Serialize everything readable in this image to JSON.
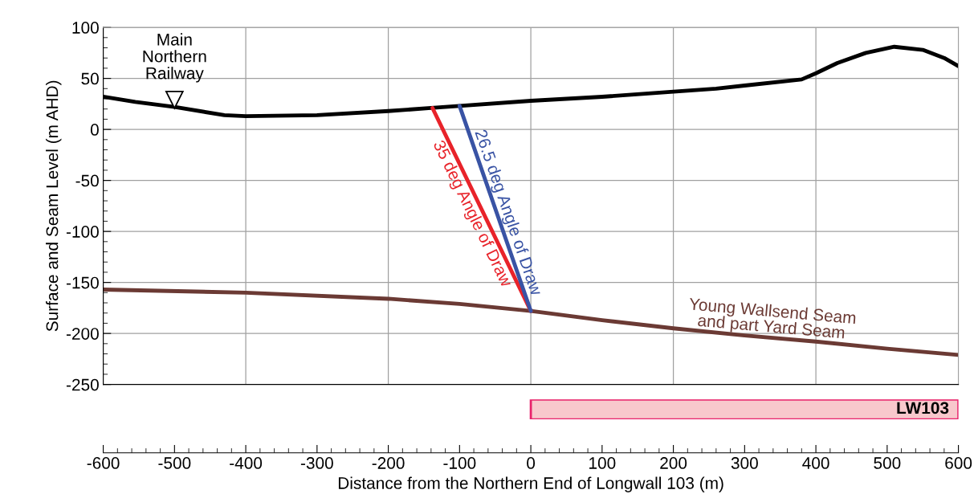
{
  "chart_data": [
    {
      "type": "line",
      "xlim": [
        -600,
        600
      ],
      "ylim": [
        -250,
        100
      ],
      "yticks": [
        -250,
        -200,
        -150,
        -100,
        -50,
        0,
        50,
        100
      ],
      "grid": true,
      "tick_labels": "y",
      "ylabel": "Surface and Seam Level (m AHD)",
      "marker": "none",
      "line_style": "solid",
      "series": [
        {
          "color": "#000000",
          "x": [
            -600,
            -555,
            -500,
            -430,
            -400,
            -300,
            -200,
            -140,
            -100,
            0,
            100,
            200,
            260,
            300,
            380,
            400,
            430,
            470,
            510,
            550,
            580,
            600
          ],
          "values": [
            32,
            27,
            22,
            14,
            13,
            14,
            18,
            21,
            23,
            28,
            32,
            37,
            40,
            43,
            49,
            55,
            65,
            75,
            81,
            78,
            70,
            62
          ]
        },
        {
          "name": "Young Wallsend Seam\nand part Yard Seam",
          "color": "#6b3a34",
          "x": [
            -600,
            -400,
            -200,
            -100,
            0,
            100,
            200,
            300,
            400,
            500,
            600
          ],
          "values": [
            -157,
            -160,
            -166,
            -171,
            -178,
            -187,
            -195,
            -202,
            -208,
            -215,
            -221
          ]
        },
        {
          "name": "35 deg Angle of Draw",
          "color": "#e8232a",
          "x": [
            -138,
            0
          ],
          "values": [
            21,
            -178
          ]
        },
        {
          "name": "26.5 deg Angle of Draw",
          "color": "#3953a4",
          "x": [
            -100,
            0
          ],
          "values": [
            23,
            -178
          ]
        }
      ],
      "annotations": [
        {
          "text": "Main\nNorthern\nRailway",
          "x": -500,
          "y": 22
        }
      ]
    },
    {
      "type": "bar",
      "orientation": "horizontal",
      "categories": [
        null
      ],
      "base": [
        0
      ],
      "values": [
        600
      ],
      "colors": [
        "#f8c8cc"
      ],
      "value_labels": [
        "LW103"
      ],
      "xlim": [
        -600,
        600
      ],
      "xticks": [
        -600,
        -500,
        -400,
        -300,
        -200,
        -100,
        0,
        100,
        200,
        300,
        400,
        500,
        600
      ],
      "tick_labels": "x",
      "xlabel": "Distance from the Northern End of Longwall 103 (m)"
    }
  ]
}
